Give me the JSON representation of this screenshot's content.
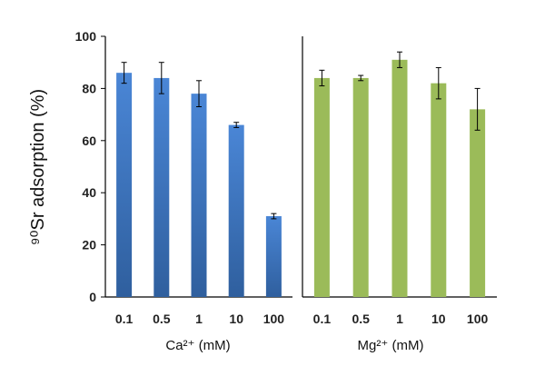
{
  "chart_data": [
    {
      "type": "bar",
      "categories": [
        "0.1",
        "0.5",
        "1",
        "10",
        "100"
      ],
      "xlabel": "Ca²⁺ (mM)",
      "ylabel": "⁹⁰Sr adsorption  (%)",
      "ylim": [
        0,
        100
      ],
      "yticks": [
        0,
        20,
        40,
        60,
        80,
        100
      ],
      "series": [
        {
          "values": [
            86,
            84,
            78,
            66,
            31
          ],
          "errors": [
            4,
            6,
            5,
            1,
            1
          ],
          "color": "#3d78c8"
        }
      ]
    },
    {
      "type": "bar",
      "categories": [
        "0.1",
        "0.5",
        "1",
        "10",
        "100"
      ],
      "xlabel": "Mg²⁺ (mM)",
      "ylim": [
        0,
        100
      ],
      "series": [
        {
          "values": [
            84,
            84,
            91,
            82,
            72
          ],
          "errors": [
            3,
            1,
            3,
            6,
            8
          ],
          "color": "#9bbb59"
        }
      ]
    }
  ]
}
